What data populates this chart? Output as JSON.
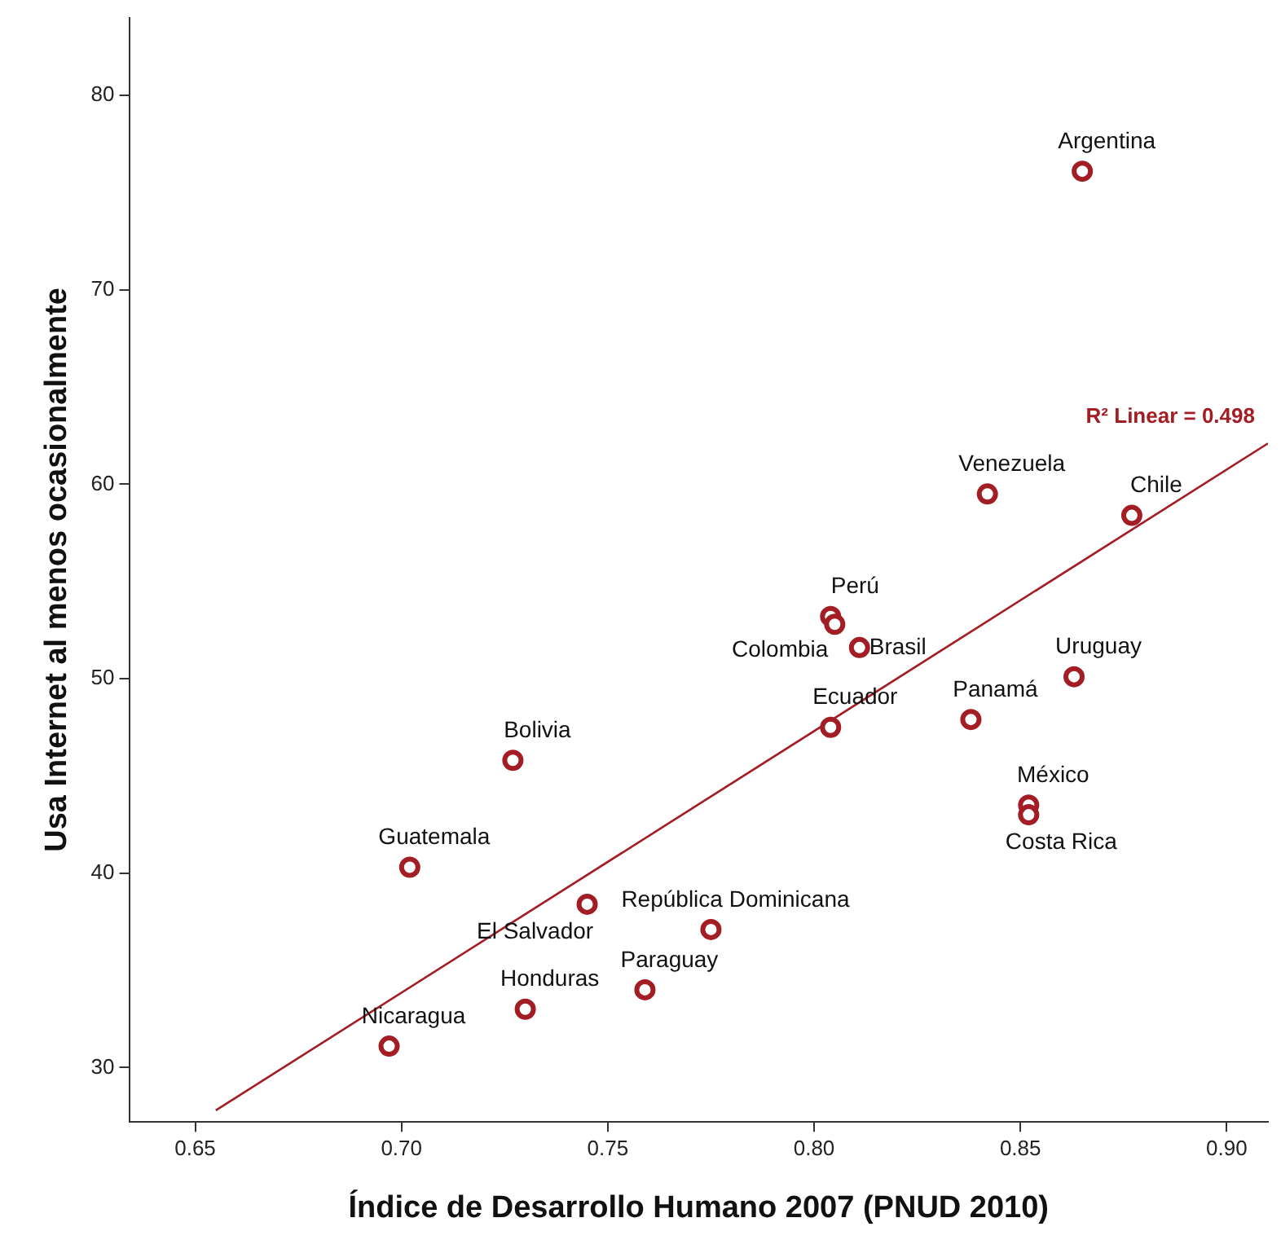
{
  "chart_data": {
    "type": "scatter",
    "xlabel": "Índice de Desarrollo Humano 2007 (PNUD 2010)",
    "ylabel": "Usa Internet al menos ocasionalmente",
    "xlim": [
      0.634,
      0.91
    ],
    "xticks": [
      {
        "value": 0.65,
        "label": "0.65"
      },
      {
        "value": 0.7,
        "label": "0.70"
      },
      {
        "value": 0.75,
        "label": "0.75"
      },
      {
        "value": 0.8,
        "label": "0.80"
      },
      {
        "value": 0.85,
        "label": "0.85"
      },
      {
        "value": 0.9,
        "label": "0.90"
      }
    ],
    "ylim": [
      27.2,
      84
    ],
    "yticks": [
      30,
      40,
      50,
      60,
      70,
      80
    ],
    "grid": false,
    "legend": false,
    "marker": "circle",
    "series": [
      {
        "color": "#a31d24",
        "x": [
          0.865,
          0.842,
          0.877,
          0.804,
          0.805,
          0.811,
          0.804,
          0.838,
          0.863,
          0.852,
          0.852,
          0.727,
          0.702,
          0.745,
          0.775,
          0.759,
          0.73,
          0.697
        ],
        "values": [
          76.1,
          59.5,
          58.4,
          53.2,
          52.8,
          51.6,
          47.5,
          47.9,
          50.1,
          43.5,
          43.0,
          45.8,
          40.3,
          38.4,
          37.1,
          34.0,
          33.0,
          31.1
        ]
      },
      {
        "type": "line",
        "marker": "none",
        "color": "#a31d24",
        "x": [
          0.655,
          0.91
        ],
        "values": [
          27.8,
          62.1
        ]
      }
    ],
    "annotations": [
      {
        "text": "Argentina",
        "x": 0.865,
        "y": 76.1
      },
      {
        "text": "Venezuela",
        "x": 0.842,
        "y": 59.5
      },
      {
        "text": "Chile",
        "x": 0.877,
        "y": 58.4
      },
      {
        "text": "Perú",
        "x": 0.804,
        "y": 53.2
      },
      {
        "text": "Colombia",
        "x": 0.805,
        "y": 52.8
      },
      {
        "text": "Brasil",
        "x": 0.811,
        "y": 51.6
      },
      {
        "text": "Ecuador",
        "x": 0.804,
        "y": 47.5
      },
      {
        "text": "Panamá",
        "x": 0.838,
        "y": 47.9
      },
      {
        "text": "Uruguay",
        "x": 0.863,
        "y": 50.1
      },
      {
        "text": "México",
        "x": 0.852,
        "y": 43.5
      },
      {
        "text": "Costa Rica",
        "x": 0.852,
        "y": 43.0
      },
      {
        "text": "Bolivia",
        "x": 0.727,
        "y": 45.8
      },
      {
        "text": "Guatemala",
        "x": 0.702,
        "y": 40.3
      },
      {
        "text": "El Salvador",
        "x": 0.745,
        "y": 38.4
      },
      {
        "text": "República Dominicana",
        "x": 0.775,
        "y": 37.1
      },
      {
        "text": "Paraguay",
        "x": 0.759,
        "y": 34.0
      },
      {
        "text": "Honduras",
        "x": 0.73,
        "y": 33.0
      },
      {
        "text": "Nicaragua",
        "x": 0.697,
        "y": 31.1
      },
      "R² Linear = 0.498"
    ]
  }
}
